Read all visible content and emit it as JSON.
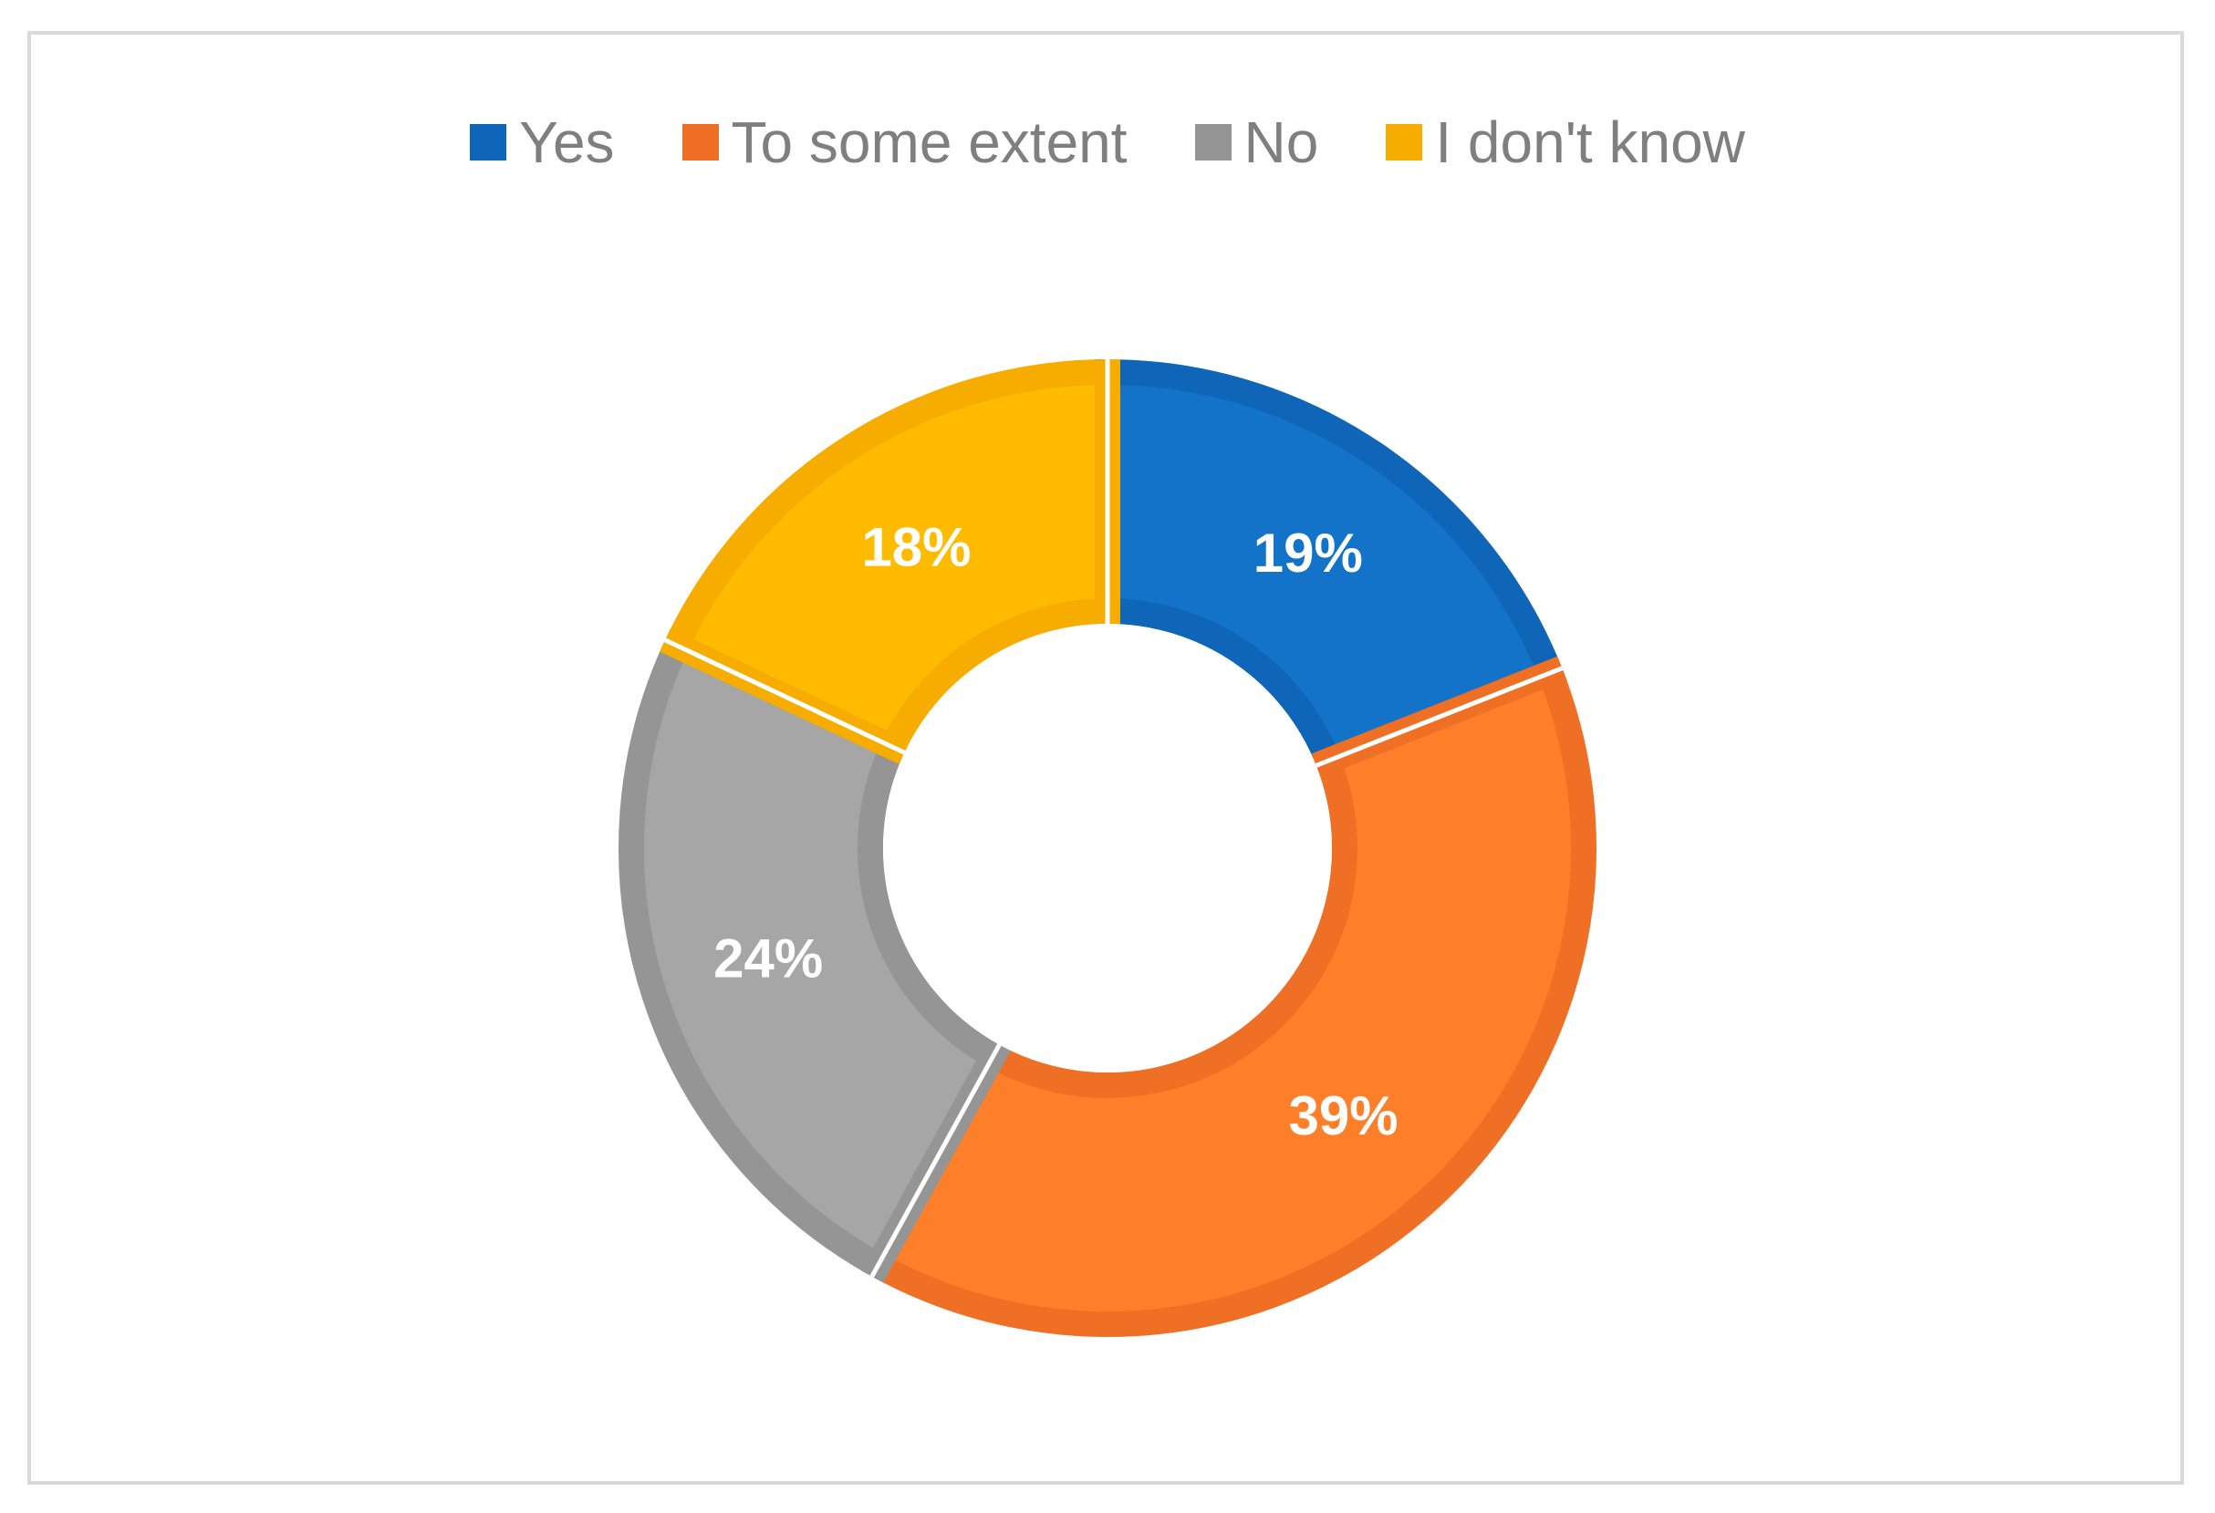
{
  "chart_data": {
    "type": "pie",
    "title": "",
    "categories": [
      "Yes",
      "To some extent",
      "No",
      "I don't know"
    ],
    "values": [
      19,
      39,
      24,
      18
    ],
    "value_labels": [
      "19%",
      "39%",
      "24%",
      "18%"
    ],
    "colors": {
      "fill": [
        "#1273c9",
        "#fe7f29",
        "#a6a6a6",
        "#ffbb00"
      ],
      "border": [
        "#0f66b9",
        "#ef6f24",
        "#959595",
        "#f7ac00"
      ]
    },
    "legend_placement": "top",
    "hole": true
  }
}
